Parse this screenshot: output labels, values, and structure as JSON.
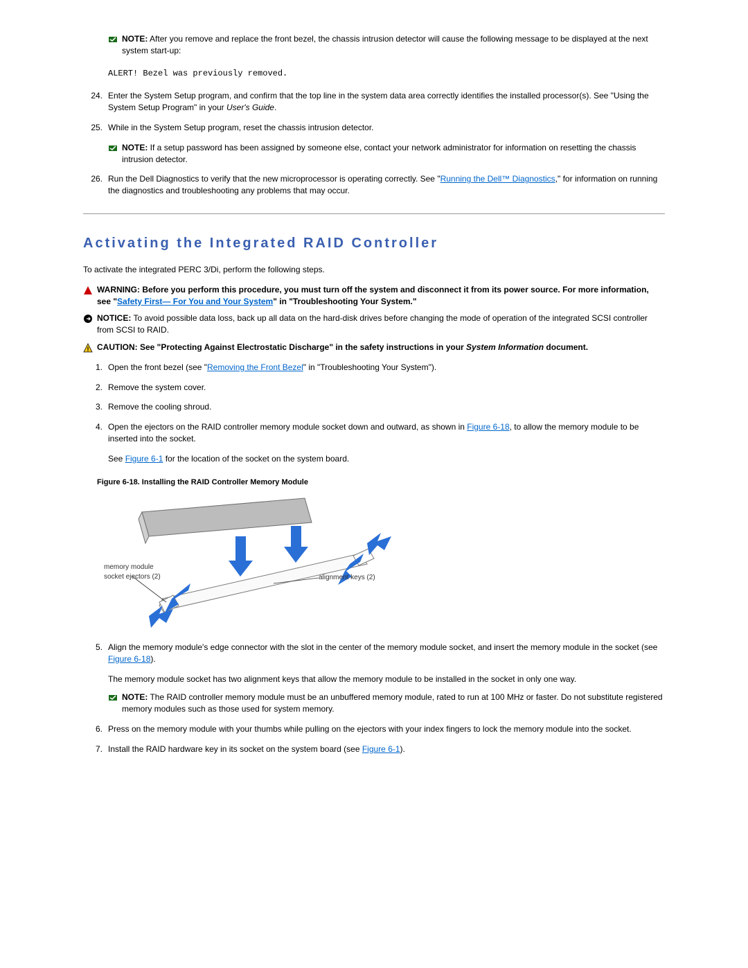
{
  "topnote": {
    "label": "NOTE:",
    "text": " After you remove and replace the front bezel, the chassis intrusion detector will cause the following message to be displayed at the next system start-up:"
  },
  "alert_line": "ALERT! Bezel was previously removed.",
  "steps_top": [
    {
      "num": "24.",
      "pre": "Enter the System Setup program, and confirm that the top line in the system data area correctly identifies the installed processor(s). See \"Using the System Setup Program\" in your ",
      "italic": "User's Guide",
      "post": "."
    },
    {
      "num": "25.",
      "pre": "While in the System Setup program, reset the chassis intrusion detector.",
      "italic": "",
      "post": ""
    }
  ],
  "midnote": {
    "label": "NOTE:",
    "text": " If a setup password has been assigned by someone else, contact your network administrator for information on resetting the chassis intrusion detector."
  },
  "step26": {
    "num": "26.",
    "pre": "Run the Dell Diagnostics to verify that the new microprocessor is operating correctly. See \"",
    "link": "Running the Dell™ Diagnostics",
    "post": ",\" for information on running the diagnostics and troubleshooting any problems that may occur."
  },
  "section_title": "Activating the Integrated RAID Controller",
  "intro": "To activate the integrated PERC 3/Di, perform the following steps.",
  "warning": {
    "label": "WARNING: ",
    "pre": "Before you perform this procedure, you must turn off the system and disconnect it from its power source. For more information, see \"",
    "link": "Safety First— For You and Your System",
    "post": "\" in \"Troubleshooting Your System.\""
  },
  "notice": {
    "label": "NOTICE:",
    "text": " To avoid possible data loss, back up all data on the hard-disk drives before changing the mode of operation of the integrated SCSI controller from SCSI to RAID."
  },
  "caution": {
    "label": "CAUTION: ",
    "pre": "See \"Protecting Against Electrostatic Discharge\" in the safety instructions in your ",
    "italic": "System Information",
    "post": " document."
  },
  "steps_bottom": [
    {
      "num": "1.",
      "parts": [
        {
          "t": "text",
          "v": "Open the front bezel (see \""
        },
        {
          "t": "link",
          "v": "Removing the Front Bezel"
        },
        {
          "t": "text",
          "v": "\" in \"Troubleshooting Your System\")."
        }
      ]
    },
    {
      "num": "2.",
      "parts": [
        {
          "t": "text",
          "v": "Remove the system cover."
        }
      ]
    },
    {
      "num": "3.",
      "parts": [
        {
          "t": "text",
          "v": "Remove the cooling shroud."
        }
      ]
    },
    {
      "num": "4.",
      "parts": [
        {
          "t": "text",
          "v": "Open the ejectors on the RAID controller memory module socket down and outward, as shown in "
        },
        {
          "t": "link",
          "v": "Figure 6-18"
        },
        {
          "t": "text",
          "v": ", to allow the memory module to be inserted into the socket."
        }
      ]
    }
  ],
  "step4_extra": {
    "pre": "See ",
    "link": "Figure 6-1",
    "post": " for the location of the socket on the system board."
  },
  "figure_caption": "Figure 6-18. Installing the RAID Controller Memory Module",
  "figure": {
    "label_left_line1": "memory module",
    "label_left_line2": "socket ejectors (2)",
    "label_right": "alignment keys (2)",
    "colors": {
      "module_fill": "#bcbcbc",
      "module_stroke": "#6e6e6e",
      "socket_stroke": "#7a7a7a",
      "arrow": "#2a6fd6"
    }
  },
  "step5": {
    "num": "5.",
    "pre": "Align the memory module's edge connector with the slot in the center of the memory module socket, and insert the memory module in the socket (see ",
    "link": "Figure 6-18",
    "post": ")."
  },
  "step5_extra": "The memory module socket has two alignment keys that allow the memory module to be installed in the socket in only one way.",
  "note_raid": {
    "label": "NOTE:",
    "text": " The RAID controller memory module must be an unbuffered memory module, rated to run at 100 MHz or faster. Do not substitute registered memory modules such as those used for system memory."
  },
  "step6": {
    "num": "6.",
    "text": "Press on the memory module with your thumbs while pulling on the ejectors with your index fingers to lock the memory module into the socket."
  },
  "step7": {
    "num": "7.",
    "pre": "Install the RAID hardware key in its socket on the system board (see ",
    "link": "Figure 6-1",
    "post": ")."
  }
}
